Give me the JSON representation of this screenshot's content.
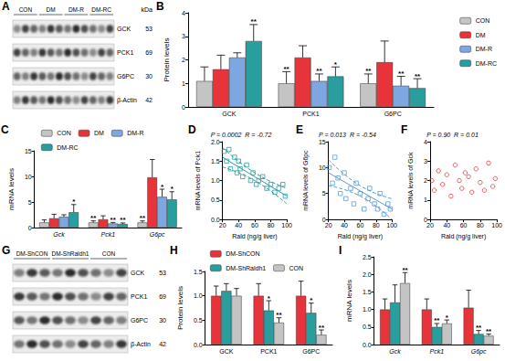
{
  "blots": [
    {
      "panel_label": "A",
      "groups": [
        "CON",
        "DM",
        "DM-R",
        "DM-RC"
      ],
      "unit": "kDa",
      "rows": [
        {
          "protein": "GCK",
          "kDa": 53
        },
        {
          "protein": "PCK1",
          "kDa": 69
        },
        {
          "protein": "G6PC",
          "kDa": 30
        },
        {
          "protein": "β-Actin",
          "kDa": 42
        }
      ]
    },
    {
      "panel_label": "G",
      "groups": [
        "DM-ShCON",
        "DM-ShRaldh1",
        "CON"
      ],
      "rows": [
        {
          "protein": "GCK",
          "kDa": 53
        },
        {
          "protein": "PCK1",
          "kDa": 69
        },
        {
          "protein": "G6PC",
          "kDa": 30
        },
        {
          "protein": "β-Actin",
          "kDa": 42
        }
      ]
    }
  ],
  "chart_data": [
    {
      "type": "bar",
      "panel_label": "B",
      "y_label": "Protein levels",
      "categories": [
        "GCK",
        "PCK1",
        "G6PC"
      ],
      "ylim": [
        0,
        4
      ],
      "yticks": [
        0,
        1,
        2,
        3,
        4
      ],
      "grid": false,
      "legend": "right",
      "series": [
        {
          "name": "CON",
          "color": "#c4c4c4",
          "values": [
            1.1,
            1.0,
            1.0
          ],
          "errors": [
            0.6,
            0.5,
            0.4
          ],
          "marks": [
            null,
            "**",
            "**"
          ]
        },
        {
          "name": "DM",
          "color": "#e8333a",
          "values": [
            1.6,
            2.1,
            1.9
          ],
          "errors": [
            0.6,
            0.5,
            0.9
          ],
          "marks": [
            null,
            null,
            null
          ]
        },
        {
          "name": "DM-R",
          "color": "#7ea6e0",
          "values": [
            2.1,
            1.1,
            0.9
          ],
          "errors": [
            0.2,
            0.3,
            0.4
          ],
          "marks": [
            null,
            "**",
            "**"
          ]
        },
        {
          "name": "DM-RC",
          "color": "#2a9d9f",
          "values": [
            2.8,
            1.3,
            0.8
          ],
          "errors": [
            0.7,
            0.4,
            0.4
          ],
          "marks": [
            "**",
            "*",
            "**"
          ]
        }
      ]
    },
    {
      "type": "bar",
      "panel_label": "C",
      "y_label": "mRNA levels",
      "categories": [
        "Gck",
        "Pck1",
        "G6pc"
      ],
      "ylim": [
        0,
        15
      ],
      "yticks": [
        0,
        5,
        10,
        15
      ],
      "grid": false,
      "legend": "top",
      "series": [
        {
          "name": "CON",
          "color": "#c4c4c4",
          "values": [
            1.0,
            1.0,
            1.0
          ],
          "errors": [
            0.5,
            0.3,
            0.3
          ],
          "marks": [
            null,
            "**",
            "**"
          ]
        },
        {
          "name": "DM",
          "color": "#e8333a",
          "values": [
            1.8,
            1.6,
            9.8
          ],
          "errors": [
            0.8,
            0.7,
            3.5
          ],
          "marks": [
            null,
            null,
            null
          ]
        },
        {
          "name": "DM-R",
          "color": "#7ea6e0",
          "values": [
            2.1,
            0.8,
            6.0
          ],
          "errors": [
            0.4,
            0.2,
            1.5
          ],
          "marks": [
            null,
            "**",
            "*"
          ]
        },
        {
          "name": "DM-RC",
          "color": "#2a9d9f",
          "values": [
            3.0,
            0.7,
            5.5
          ],
          "errors": [
            1.5,
            0.2,
            1.5
          ],
          "marks": [
            "*",
            "**",
            "*"
          ]
        }
      ]
    },
    {
      "type": "scatter",
      "panel_label": "D",
      "annotation": "P = 0.0002  R = -0.72",
      "x_label": "Rald (ng/g liver)",
      "y_label": "mRNA levels of Pck1",
      "xlim": [
        20,
        100
      ],
      "xticks": [
        20,
        40,
        60,
        80,
        100
      ],
      "ylim": [
        0,
        2
      ],
      "yticks": [
        {
          "value": 0,
          "label": "0.0"
        },
        0.5,
        {
          "value": 1,
          "label": "1.0"
        },
        1.5,
        {
          "value": 2,
          "label": "2.0"
        }
      ],
      "grid": false,
      "color": "#2a9d9f",
      "marker": "square",
      "x": [
        22,
        25,
        28,
        30,
        35,
        38,
        40,
        42,
        45,
        50,
        55,
        58,
        62,
        65,
        70,
        75,
        80,
        85,
        90,
        95,
        98
      ],
      "values": [
        1.75,
        1.5,
        1.8,
        1.3,
        1.6,
        1.2,
        1.5,
        1.3,
        1.1,
        1.4,
        1.0,
        1.2,
        0.9,
        1.0,
        1.1,
        0.8,
        0.9,
        0.7,
        0.8,
        0.9,
        0.6
      ],
      "fit": {
        "x": [
          20,
          100
        ],
        "values": [
          1.6,
          0.6
        ]
      },
      "ci_upper": {
        "x": [
          20,
          60,
          100
        ],
        "values": [
          1.85,
          1.2,
          0.8
        ]
      },
      "ci_lower": {
        "x": [
          20,
          60,
          100
        ],
        "values": [
          1.35,
          1.0,
          0.4
        ]
      }
    },
    {
      "type": "scatter",
      "panel_label": "E",
      "annotation": "P = 0.013  R = -0.54",
      "x_label": "Rald (ng/g liver)",
      "y_label": "mRNA levels of G6pc",
      "xlim": [
        20,
        100
      ],
      "xticks": [
        20,
        40,
        60,
        80,
        100
      ],
      "ylim": [
        0,
        15
      ],
      "yticks": [
        0,
        5,
        10,
        15
      ],
      "grid": false,
      "color": "#5b9bd5",
      "marker": "square",
      "x": [
        21,
        25,
        28,
        32,
        35,
        40,
        42,
        48,
        52,
        55,
        60,
        65,
        70,
        72,
        78,
        82,
        85,
        90,
        95,
        98
      ],
      "values": [
        10,
        7,
        12,
        8,
        5,
        9,
        4,
        6,
        3,
        7,
        5,
        2,
        4,
        6,
        3,
        2,
        5,
        1,
        3,
        2
      ],
      "fit": {
        "x": [
          20,
          100
        ],
        "values": [
          9,
          2
        ]
      },
      "ci_upper": {
        "x": [
          20,
          60,
          100
        ],
        "values": [
          11.5,
          6.5,
          4
        ]
      },
      "ci_lower": {
        "x": [
          20,
          60,
          100
        ],
        "values": [
          6.5,
          4.5,
          0
        ]
      }
    },
    {
      "type": "scatter",
      "panel_label": "F",
      "annotation": "P = 0.90  R = 0.01",
      "x_label": "Rald (ng/g liver)",
      "y_label": "mRNA levels of Gck",
      "xlim": [
        20,
        100
      ],
      "xticks": [
        20,
        40,
        60,
        80,
        100
      ],
      "ylim": [
        0,
        4
      ],
      "yticks": [
        0,
        1,
        2,
        3,
        4
      ],
      "grid": false,
      "color": "#e8333a",
      "marker": "circle",
      "x": [
        22,
        25,
        30,
        35,
        40,
        45,
        50,
        55,
        58,
        62,
        66,
        70,
        75,
        80,
        85,
        90,
        95,
        98
      ],
      "values": [
        2.0,
        1.5,
        2.5,
        1.8,
        2.3,
        1.2,
        2.8,
        2.0,
        1.6,
        2.4,
        2.2,
        1.4,
        2.6,
        1.9,
        1.5,
        2.9,
        1.7,
        2.1
      ]
    },
    {
      "type": "bar",
      "panel_label": "H",
      "y_label": "Protein levels",
      "categories": [
        "GCK",
        "PCK1",
        "G6PC"
      ],
      "ylim": [
        0,
        1.5
      ],
      "yticks": [
        {
          "value": 0,
          "label": "0.0"
        },
        0.5,
        {
          "value": 1,
          "label": "1.0"
        },
        1.5
      ],
      "grid": false,
      "legend": "top",
      "series": [
        {
          "name": "DM-ShCON",
          "color": "#e8333a",
          "values": [
            1.0,
            1.0,
            1.0
          ],
          "errors": [
            0.2,
            0.25,
            0.3
          ],
          "marks": [
            null,
            null,
            null
          ]
        },
        {
          "name": "DM-ShRaldh1",
          "color": "#2a9d9f",
          "values": [
            1.1,
            0.7,
            0.65
          ],
          "errors": [
            0.15,
            0.2,
            0.2
          ],
          "marks": [
            null,
            "*",
            "*"
          ]
        },
        {
          "name": "CON",
          "color": "#c4c4c4",
          "values": [
            1.0,
            0.45,
            0.2
          ],
          "errors": [
            0.15,
            0.1,
            0.1
          ],
          "marks": [
            null,
            "**",
            "**"
          ]
        }
      ]
    },
    {
      "type": "bar",
      "panel_label": "I",
      "y_label": "mRNA levels",
      "categories": [
        "Gck",
        "Pck1",
        "G6pc"
      ],
      "ylim": [
        0,
        2.5
      ],
      "yticks": [
        {
          "value": 0,
          "label": "0.0"
        },
        0.5,
        {
          "value": 1,
          "label": "1.0"
        },
        1.5,
        {
          "value": 2,
          "label": "2.0"
        },
        2.5
      ],
      "grid": false,
      "series": [
        {
          "name": "DM-ShCON",
          "color": "#e8333a",
          "values": [
            1.0,
            1.0,
            1.05
          ],
          "errors": [
            0.3,
            0.3,
            0.5
          ],
          "marks": [
            null,
            null,
            null
          ]
        },
        {
          "name": "DM-ShRaldh1",
          "color": "#2a9d9f",
          "values": [
            1.2,
            0.5,
            0.3
          ],
          "errors": [
            0.5,
            0.1,
            0.1
          ],
          "marks": [
            null,
            "**",
            "**"
          ]
        },
        {
          "name": "CON",
          "color": "#c4c4c4",
          "values": [
            1.75,
            0.6,
            0.25
          ],
          "errors": [
            0.3,
            0.1,
            0.05
          ],
          "marks": [
            "**",
            "*",
            "**"
          ]
        }
      ]
    }
  ]
}
